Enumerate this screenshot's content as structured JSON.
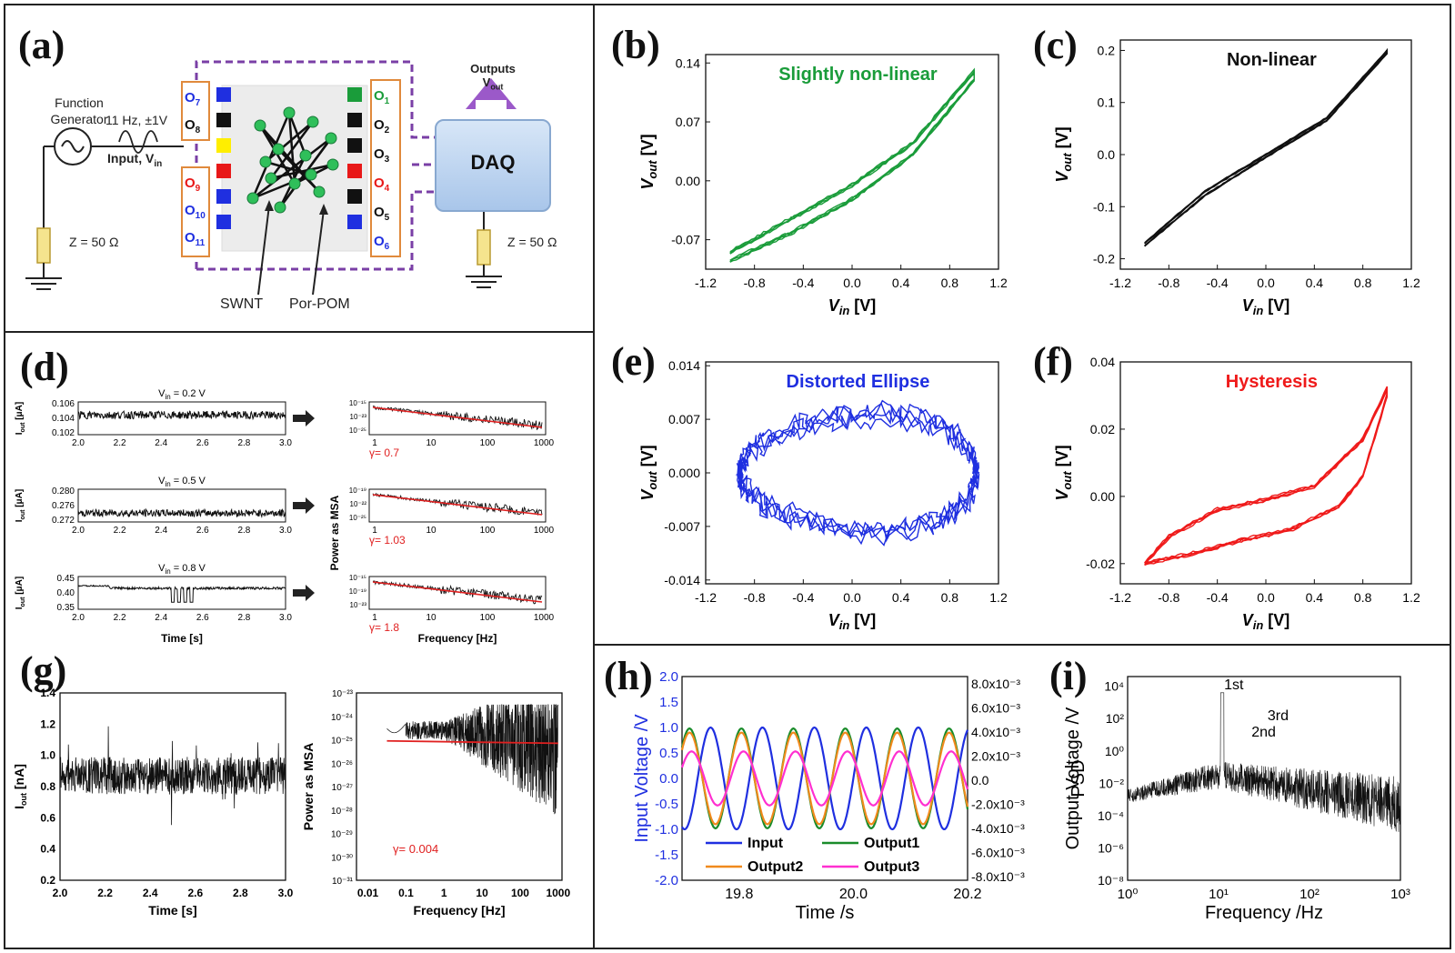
{
  "panel_labels": {
    "a": "(a)",
    "b": "(b)",
    "c": "(c)",
    "d": "(d)",
    "e": "(e)",
    "f": "(f)",
    "g": "(g)",
    "h": "(h)",
    "i": "(i)"
  },
  "colors": {
    "green": "#1a9c3a",
    "blue": "#1f2fe0",
    "red": "#ef1a1a",
    "black": "#111111",
    "purple": "#7a3fa6",
    "orange": "#f08a1c",
    "magenta": "#ff2fd0"
  },
  "schematic": {
    "function_generator": "Function Generator",
    "signal": "11 Hz, ±1V",
    "input": "Input, V",
    "input_sub": "in",
    "z_left": "Z = 50 Ω",
    "z_right": "Z = 50 Ω",
    "outputs": "Outputs",
    "vout": "V",
    "vout_sub": "out",
    "daq": "DAQ",
    "swnt": "SWNT",
    "porpom": "Por-POM",
    "left_top_pins": [
      {
        "n": "7",
        "c": "#1f2fe0"
      },
      {
        "n": "8",
        "c": "#111"
      }
    ],
    "left_bottom_pins": [
      {
        "n": "9",
        "c": "#e81818"
      },
      {
        "n": "10",
        "c": "#1f2fe0"
      },
      {
        "n": "11",
        "c": "#1f2fe0"
      }
    ],
    "right_pins": [
      {
        "n": "1",
        "c": "#1a9c3a"
      },
      {
        "n": "2",
        "c": "#111"
      },
      {
        "n": "3",
        "c": "#111"
      },
      {
        "n": "4",
        "c": "#e81818"
      },
      {
        "n": "5",
        "c": "#111"
      },
      {
        "n": "6",
        "c": "#1f2fe0"
      }
    ],
    "left_squares": [
      "#1f2fe0",
      "#111",
      "#ffee00",
      "#e81818",
      "#1f2fe0",
      "#1f2fe0"
    ],
    "right_squares": [
      "#1a9c3a",
      "#111",
      "#111",
      "#e81818",
      "#111",
      "#1f2fe0"
    ]
  },
  "chart_data": [
    {
      "id": "b",
      "type": "line",
      "title": "Slightly non-linear",
      "title_color": "#1a9c3a",
      "color": "#1a9c3a",
      "xlabel": "V",
      "xlabel_sub": "in",
      "xlabel_unit": " [V]",
      "ylabel": "V",
      "ylabel_sub": "out",
      "ylabel_unit": " [V]",
      "xlim": [
        -1.2,
        1.2
      ],
      "ylim": [
        -0.105,
        0.15
      ],
      "xticks": [
        "-1.2",
        "-0.8",
        "-0.4",
        "0.0",
        "0.4",
        "0.8",
        "1.2"
      ],
      "xtick_vals": [
        -1.2,
        -0.8,
        -0.4,
        0,
        0.4,
        0.8,
        1.2
      ],
      "yticks": [
        "-0.07",
        "0.00",
        "0.07",
        "0.14"
      ],
      "ytick_vals": [
        -0.07,
        0,
        0.07,
        0.14
      ],
      "loop": {
        "upper": [
          [
            -1.0,
            -0.085
          ],
          [
            -0.5,
            -0.045
          ],
          [
            0.0,
            -0.005
          ],
          [
            0.5,
            0.045
          ],
          [
            1.0,
            0.13
          ]
        ],
        "lower": [
          [
            -1.0,
            -0.095
          ],
          [
            -0.5,
            -0.062
          ],
          [
            0.0,
            -0.022
          ],
          [
            0.5,
            0.032
          ],
          [
            1.0,
            0.12
          ]
        ]
      }
    },
    {
      "id": "c",
      "type": "line",
      "title": "Non-linear",
      "title_color": "#111111",
      "color": "#111111",
      "xlabel": "V",
      "xlabel_sub": "in",
      "xlabel_unit": " [V]",
      "ylabel": "V",
      "ylabel_sub": "out",
      "ylabel_unit": " [V]",
      "xlim": [
        -1.2,
        1.2
      ],
      "ylim": [
        -0.22,
        0.22
      ],
      "xticks": [
        "-1.2",
        "-0.8",
        "-0.4",
        "0.0",
        "0.4",
        "0.8",
        "1.2"
      ],
      "xtick_vals": [
        -1.2,
        -0.8,
        -0.4,
        0,
        0.4,
        0.8,
        1.2
      ],
      "yticks": [
        "-0.2",
        "-0.1",
        "0.0",
        "0.1",
        "0.2"
      ],
      "ytick_vals": [
        -0.2,
        -0.1,
        0,
        0.1,
        0.2
      ],
      "loop": {
        "upper": [
          [
            -1.0,
            -0.17
          ],
          [
            -0.5,
            -0.07
          ],
          [
            0.0,
            0.0
          ],
          [
            0.5,
            0.07
          ],
          [
            1.0,
            0.2
          ]
        ],
        "lower": [
          [
            -1.0,
            -0.175
          ],
          [
            -0.5,
            -0.078
          ],
          [
            0.0,
            -0.005
          ],
          [
            0.5,
            0.065
          ],
          [
            1.0,
            0.195
          ]
        ]
      }
    },
    {
      "id": "e",
      "type": "line",
      "title": "Distorted Ellipse",
      "title_color": "#1f2fe0",
      "color": "#1f2fe0",
      "xlabel": "V",
      "xlabel_sub": "in",
      "xlabel_unit": " [V]",
      "ylabel": "V",
      "ylabel_sub": "out",
      "ylabel_unit": " [V]",
      "xlim": [
        -1.2,
        1.2
      ],
      "ylim": [
        -0.0145,
        0.0145
      ],
      "xticks": [
        "-1.2",
        "-0.8",
        "-0.4",
        "0.0",
        "0.4",
        "0.8",
        "1.2"
      ],
      "xtick_vals": [
        -1.2,
        -0.8,
        -0.4,
        0,
        0.4,
        0.8,
        1.2
      ],
      "yticks": [
        "-0.014",
        "-0.007",
        "0.000",
        "0.007",
        "0.014"
      ],
      "ytick_vals": [
        -0.014,
        -0.007,
        0,
        0.007,
        0.014
      ],
      "ellipse": {
        "cx": 0.05,
        "cy": 0.0,
        "rx": 0.97,
        "ry": 0.0075
      }
    },
    {
      "id": "f",
      "type": "line",
      "title": "Hysteresis",
      "title_color": "#ef1a1a",
      "color": "#ef1a1a",
      "xlabel": "V",
      "xlabel_sub": "in",
      "xlabel_unit": " [V]",
      "ylabel": "V",
      "ylabel_sub": "out",
      "ylabel_unit": " [V]",
      "xlim": [
        -1.2,
        1.2
      ],
      "ylim": [
        -0.026,
        0.04
      ],
      "xticks": [
        "-1.2",
        "-0.8",
        "-0.4",
        "0.0",
        "0.4",
        "0.8",
        "1.2"
      ],
      "xtick_vals": [
        -1.2,
        -0.8,
        -0.4,
        0,
        0.4,
        0.8,
        1.2
      ],
      "yticks": [
        "-0.02",
        "0.00",
        "0.02",
        "0.04"
      ],
      "ytick_vals": [
        -0.02,
        0,
        0.02,
        0.04
      ],
      "loop": {
        "upper": [
          [
            -1.0,
            -0.02
          ],
          [
            -0.8,
            -0.012
          ],
          [
            -0.4,
            -0.004
          ],
          [
            0.0,
            -0.001
          ],
          [
            0.4,
            0.003
          ],
          [
            0.8,
            0.017
          ],
          [
            1.0,
            0.032
          ]
        ],
        "lower": [
          [
            -1.0,
            -0.02
          ],
          [
            -0.6,
            -0.017
          ],
          [
            -0.2,
            -0.013
          ],
          [
            0.2,
            -0.01
          ],
          [
            0.6,
            -0.003
          ],
          [
            0.8,
            0.006
          ],
          [
            1.0,
            0.03
          ]
        ]
      }
    },
    {
      "id": "d",
      "type": "line",
      "xlabel_time": "Time [s]",
      "xlabel_freq": "Frequency [Hz]",
      "ylabel_freq": "Power as MSA",
      "rows": [
        {
          "vin": "V",
          "vin_sub": "in",
          "vin_val": " = 0.2 V",
          "ylabel": "I",
          "ylabel_sub": "out",
          "ylabel_unit": " [μA]",
          "yticks": [
            "0.102",
            "0.104",
            "0.106"
          ],
          "ylim": [
            0.1015,
            0.1065
          ],
          "mean": 0.1045,
          "noise": 0.0006,
          "psd_yticks": [
            "10⁻¹⁵",
            "10⁻²³",
            "10⁻²⁵"
          ],
          "gamma": "γ= 0.7"
        },
        {
          "vin": "V",
          "vin_sub": "in",
          "vin_val": " = 0.5 V",
          "ylabel": "I",
          "ylabel_sub": "out",
          "ylabel_unit": " [μA]",
          "yticks": [
            "0.272",
            "0.276",
            "0.280"
          ],
          "ylim": [
            0.2705,
            0.2815
          ],
          "mean": 0.2735,
          "noise": 0.0012,
          "psd_yticks": [
            "10⁻¹⁹",
            "10⁻²²",
            "10⁻²⁵"
          ],
          "gamma": "γ= 1.03"
        },
        {
          "vin": "V",
          "vin_sub": "in",
          "vin_val": " = 0.8 V",
          "ylabel": "I",
          "ylabel_sub": "out",
          "ylabel_unit": " [μA]",
          "yticks": [
            "0.35",
            "0.40",
            "0.45"
          ],
          "ylim": [
            0.33,
            0.47
          ],
          "mean": 0.42,
          "noise": 0.005,
          "psd_yticks": [
            "10⁻¹⁵",
            "10⁻¹⁹",
            "10⁻²³"
          ],
          "gamma": "γ= 1.8"
        }
      ],
      "xticks": [
        "2.0",
        "2.2",
        "2.4",
        "2.6",
        "2.8",
        "3.0"
      ],
      "psd_xticks": [
        "1",
        "10",
        "100",
        "1000"
      ]
    },
    {
      "id": "g",
      "type": "line",
      "xlabel": "Time [s]",
      "ylabel": "I",
      "ylabel_sub": "out",
      "ylabel_unit": " [nA]",
      "xlim": [
        2.0,
        3.0
      ],
      "ylim": [
        0.2,
        1.4
      ],
      "xticks": [
        "2.0",
        "2.2",
        "2.4",
        "2.6",
        "2.8",
        "3.0"
      ],
      "xtick_vals": [
        2.0,
        2.2,
        2.4,
        2.6,
        2.8,
        3.0
      ],
      "yticks": [
        "0.2",
        "0.4",
        "0.6",
        "0.8",
        "1.0",
        "1.2",
        "1.4"
      ],
      "ytick_vals": [
        0.2,
        0.4,
        0.6,
        0.8,
        1.0,
        1.2,
        1.4
      ],
      "mean": 0.87,
      "noise": 0.12
    },
    {
      "id": "g2",
      "type": "line",
      "xlabel": "Frequency [Hz]",
      "ylabel": "Power as MSA",
      "gamma": "γ= 0.004",
      "xticks": [
        "0.01",
        "0.1",
        "1",
        "10",
        "100",
        "1000"
      ],
      "xtick_exp": [
        -2,
        -1,
        0,
        1,
        2,
        3
      ],
      "yticks": [
        "10⁻²³",
        "10⁻²⁴",
        "10⁻²⁵",
        "10⁻²⁶",
        "10⁻²⁷",
        "10⁻²⁸",
        "10⁻²⁹",
        "10⁻³⁰",
        "10⁻³¹"
      ],
      "ytick_exp": [
        -23,
        -24,
        -25,
        -26,
        -27,
        -28,
        -29,
        -30,
        -31
      ],
      "fit_level": -25.05
    },
    {
      "id": "h",
      "type": "line",
      "xlabel": "Time /s",
      "ylabel_left": "Input Voltage /V",
      "ylabel_right": "Output Voltage /V",
      "xlim": [
        19.7,
        20.2
      ],
      "ylim_left": [
        -2.0,
        2.0
      ],
      "ylim_right": [
        -0.009,
        0.009
      ],
      "xticks": [
        "19.8",
        "20.0",
        "20.2"
      ],
      "xtick_vals": [
        19.8,
        20.0,
        20.2
      ],
      "yticks_left": [
        "-2.0",
        "-1.5",
        "-1.0",
        "-0.5",
        "0.0",
        "0.5",
        "1.0",
        "1.5",
        "2.0"
      ],
      "ytick_left_vals": [
        -2.0,
        -1.5,
        -1.0,
        -0.5,
        0,
        0.5,
        1.0,
        1.5,
        2.0
      ],
      "yticks_right": [
        "8.0x10⁻³",
        "6.0x10⁻³",
        "4.0x10⁻³",
        "2.0x10⁻³",
        "0.0",
        "-2.0x10⁻³",
        "-4.0x10⁻³",
        "-6.0x10⁻³",
        "-8.0x10⁻³"
      ],
      "series": [
        {
          "name": "Input",
          "color": "#1f2fe0",
          "amp": 1.0,
          "phase": 0.0
        },
        {
          "name": "Output1",
          "color": "#1a8c2a",
          "amp": 0.98,
          "phase": 2.55
        },
        {
          "name": "Output2",
          "color": "#f08a1c",
          "amp": 0.9,
          "phase": 2.55
        },
        {
          "name": "Output3",
          "color": "#ff2fd0",
          "amp": 0.53,
          "phase": 2.3
        }
      ],
      "freq_hz": 11
    },
    {
      "id": "i",
      "type": "line",
      "xlabel": "Frequency /Hz",
      "ylabel": "PSD",
      "xticks": [
        "10⁰",
        "10¹",
        "10²",
        "10³"
      ],
      "xtick_exp": [
        0,
        1,
        2,
        3
      ],
      "yticks": [
        "10⁴",
        "10²",
        "10⁰",
        "10⁻²",
        "10⁻⁴",
        "10⁻⁶",
        "10⁻⁸"
      ],
      "ytick_exp": [
        4,
        2,
        0,
        -2,
        -4,
        -6,
        -8
      ],
      "annotations": [
        {
          "text": "1st",
          "f": 11,
          "level": 3.8
        },
        {
          "text": "2nd",
          "f": 22,
          "level": 0.9
        },
        {
          "text": "3rd",
          "f": 33,
          "level": 1.9
        }
      ]
    }
  ]
}
